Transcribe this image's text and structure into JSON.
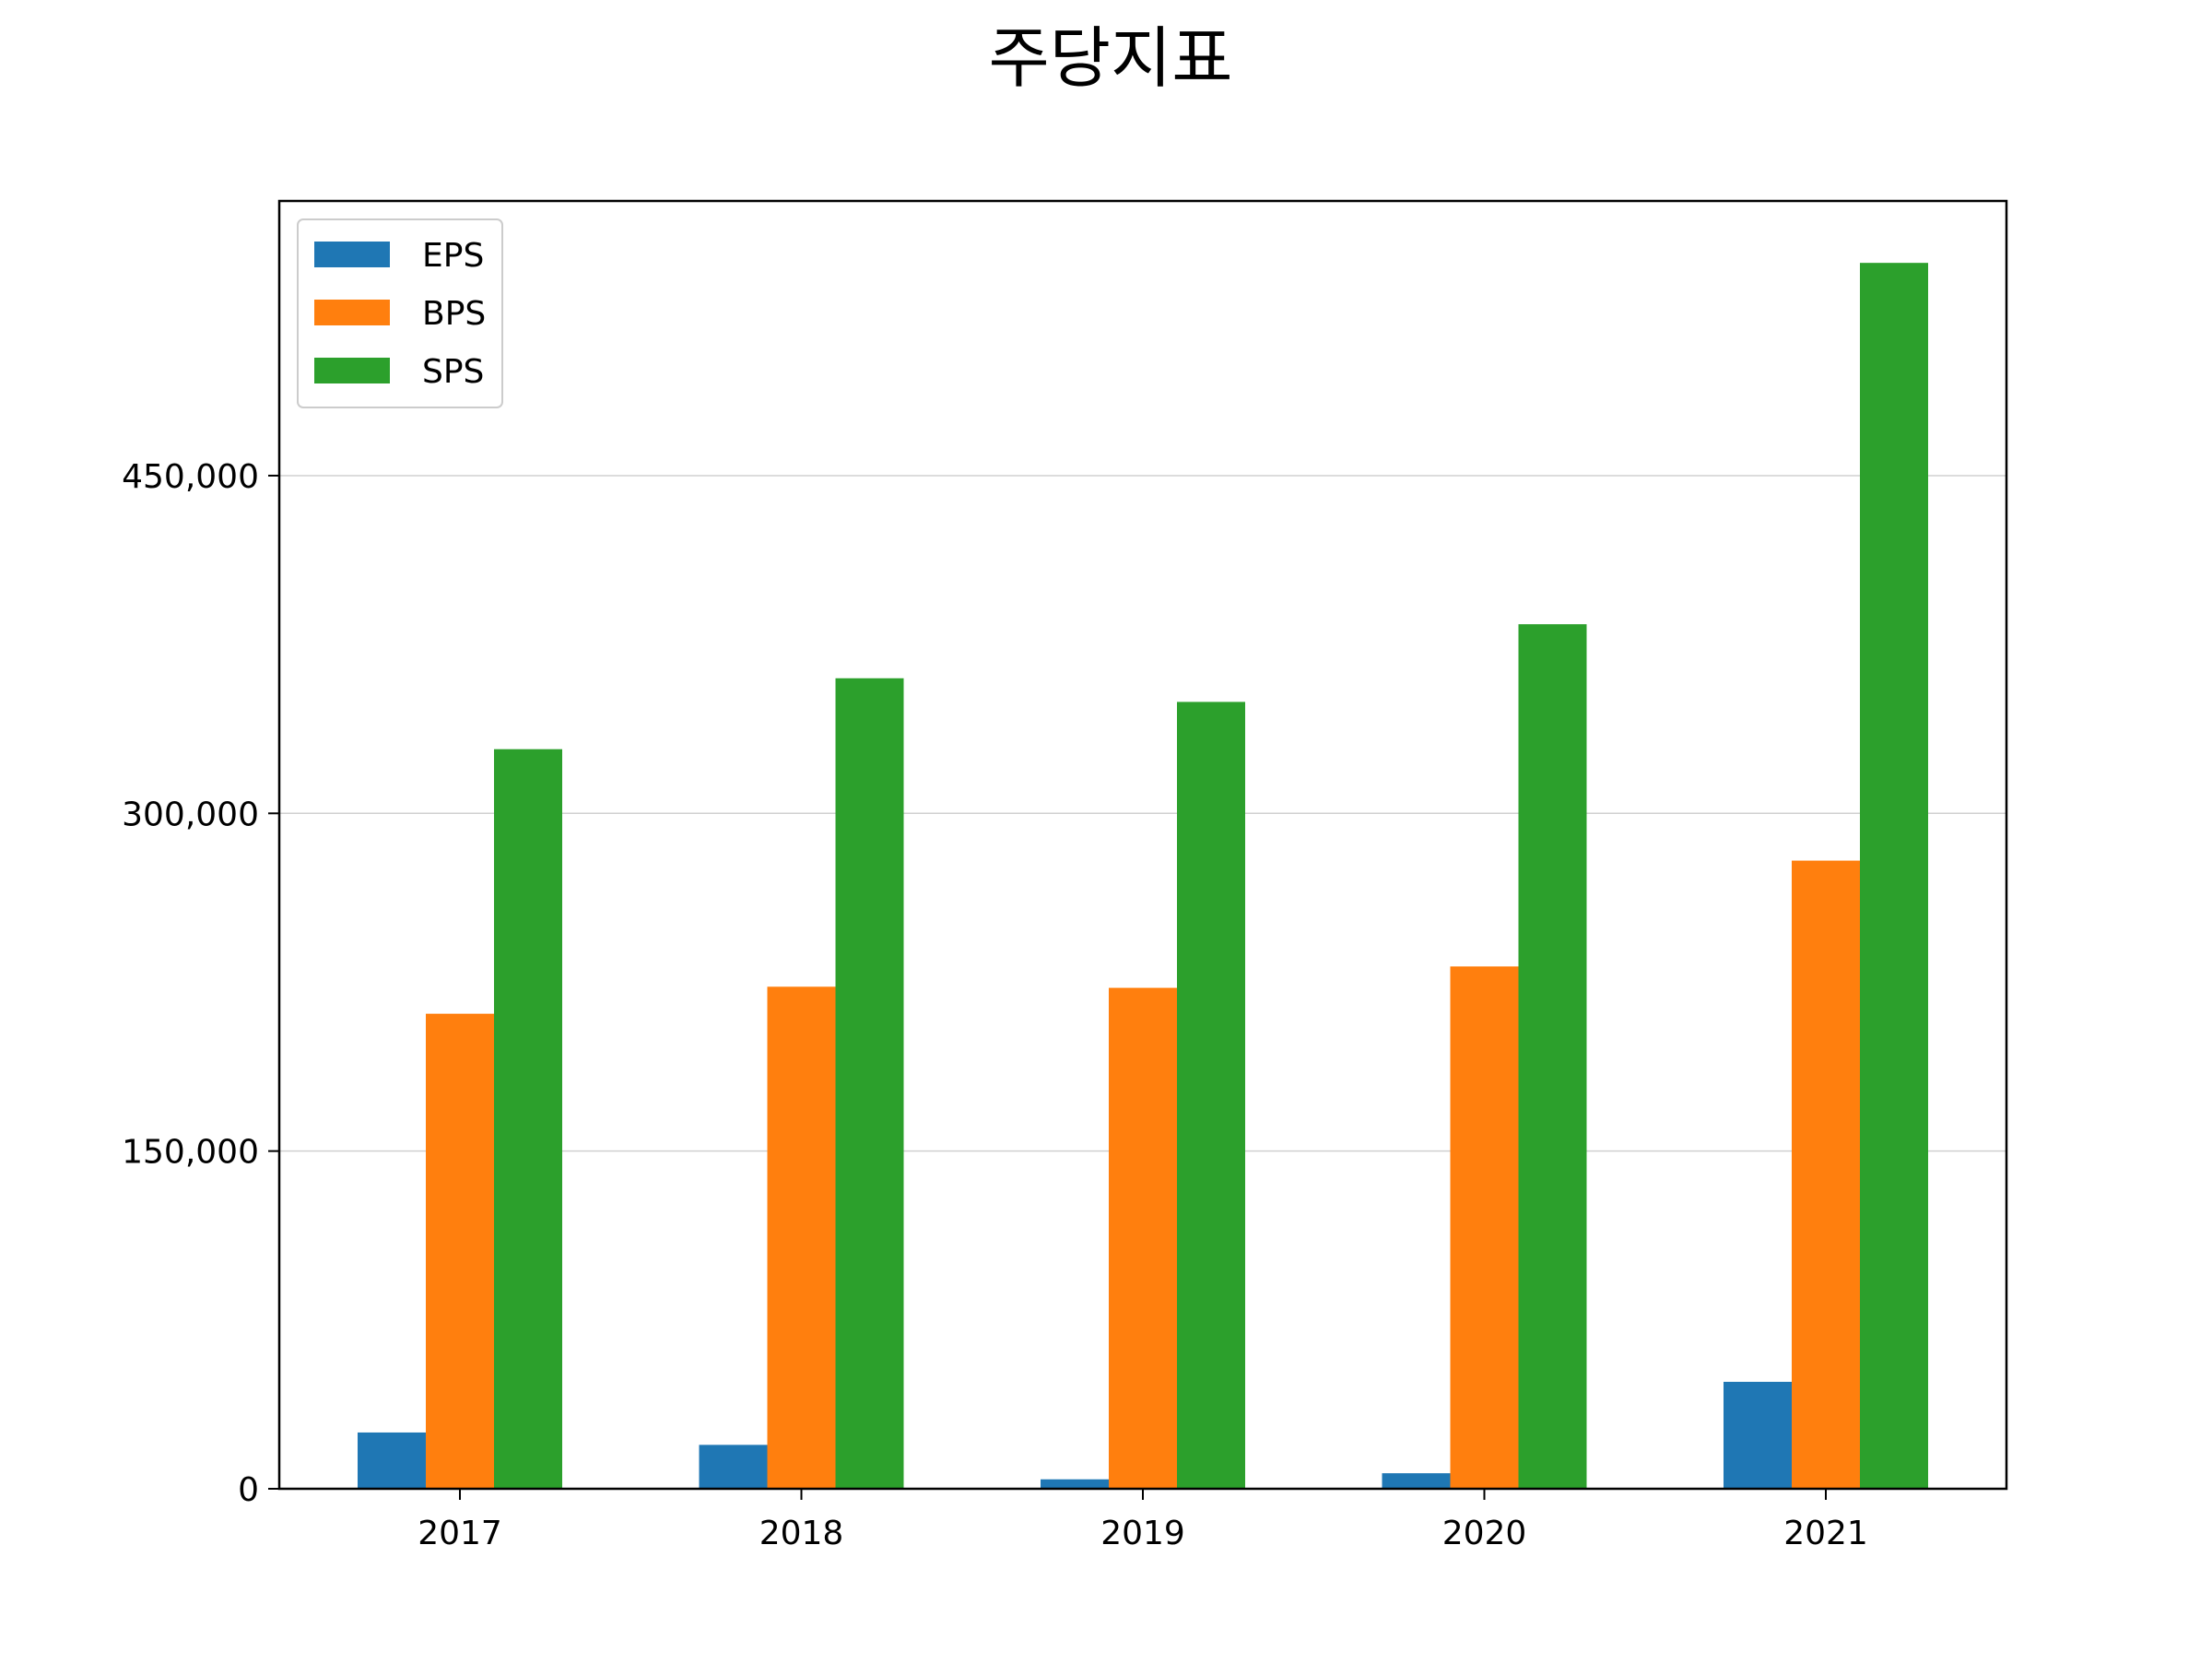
{
  "chart_data": {
    "type": "bar",
    "title": "주당지표",
    "xlabel": "",
    "ylabel": "",
    "categories": [
      "2017",
      "2018",
      "2019",
      "2020",
      "2021"
    ],
    "ylim": [
      0,
      572000
    ],
    "yticks": [
      0,
      150000,
      300000,
      450000
    ],
    "ytick_labels": [
      "0",
      "150,000",
      "300,000",
      "450,000"
    ],
    "grid": "y",
    "legend": "top-left",
    "series": [
      {
        "name": "EPS",
        "color": "#1f77b4",
        "values": [
          25000,
          19500,
          4200,
          6900,
          47500
        ]
      },
      {
        "name": "BPS",
        "color": "#ff7f0e",
        "values": [
          211000,
          223000,
          222500,
          232000,
          279000
        ]
      },
      {
        "name": "SPS",
        "color": "#2ca02c",
        "values": [
          328500,
          360000,
          349500,
          384000,
          544500
        ]
      }
    ]
  }
}
